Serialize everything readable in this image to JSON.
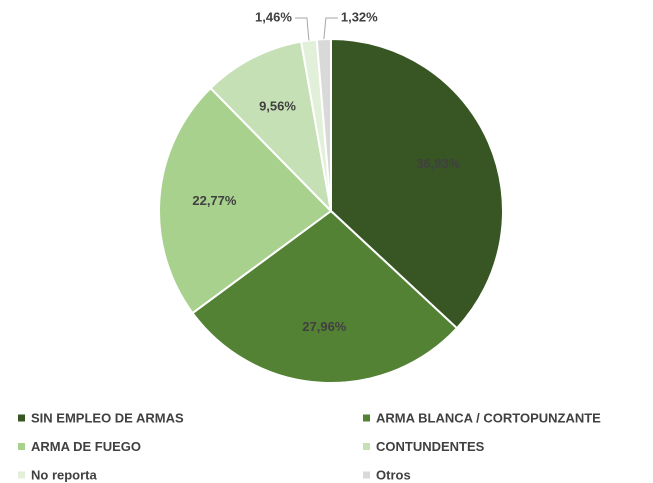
{
  "chart_data": {
    "type": "pie",
    "categories": [
      "SIN EMPLEO DE ARMAS",
      "ARMA BLANCA / CORTOPUNZANTE",
      "ARMA DE FUEGO",
      "CONTUNDENTES",
      "No reporta",
      "Otros"
    ],
    "values": [
      36.93,
      27.96,
      22.77,
      9.56,
      1.46,
      1.32
    ],
    "value_labels": [
      "36,93%",
      "27,96%",
      "22,77%",
      "9,56%",
      "1,46%",
      "1,32%"
    ],
    "colors": [
      "#375623",
      "#548235",
      "#a9d18e",
      "#c5e0b4",
      "#e2f0d9",
      "#d9d9d9"
    ],
    "legend": "bottom"
  }
}
